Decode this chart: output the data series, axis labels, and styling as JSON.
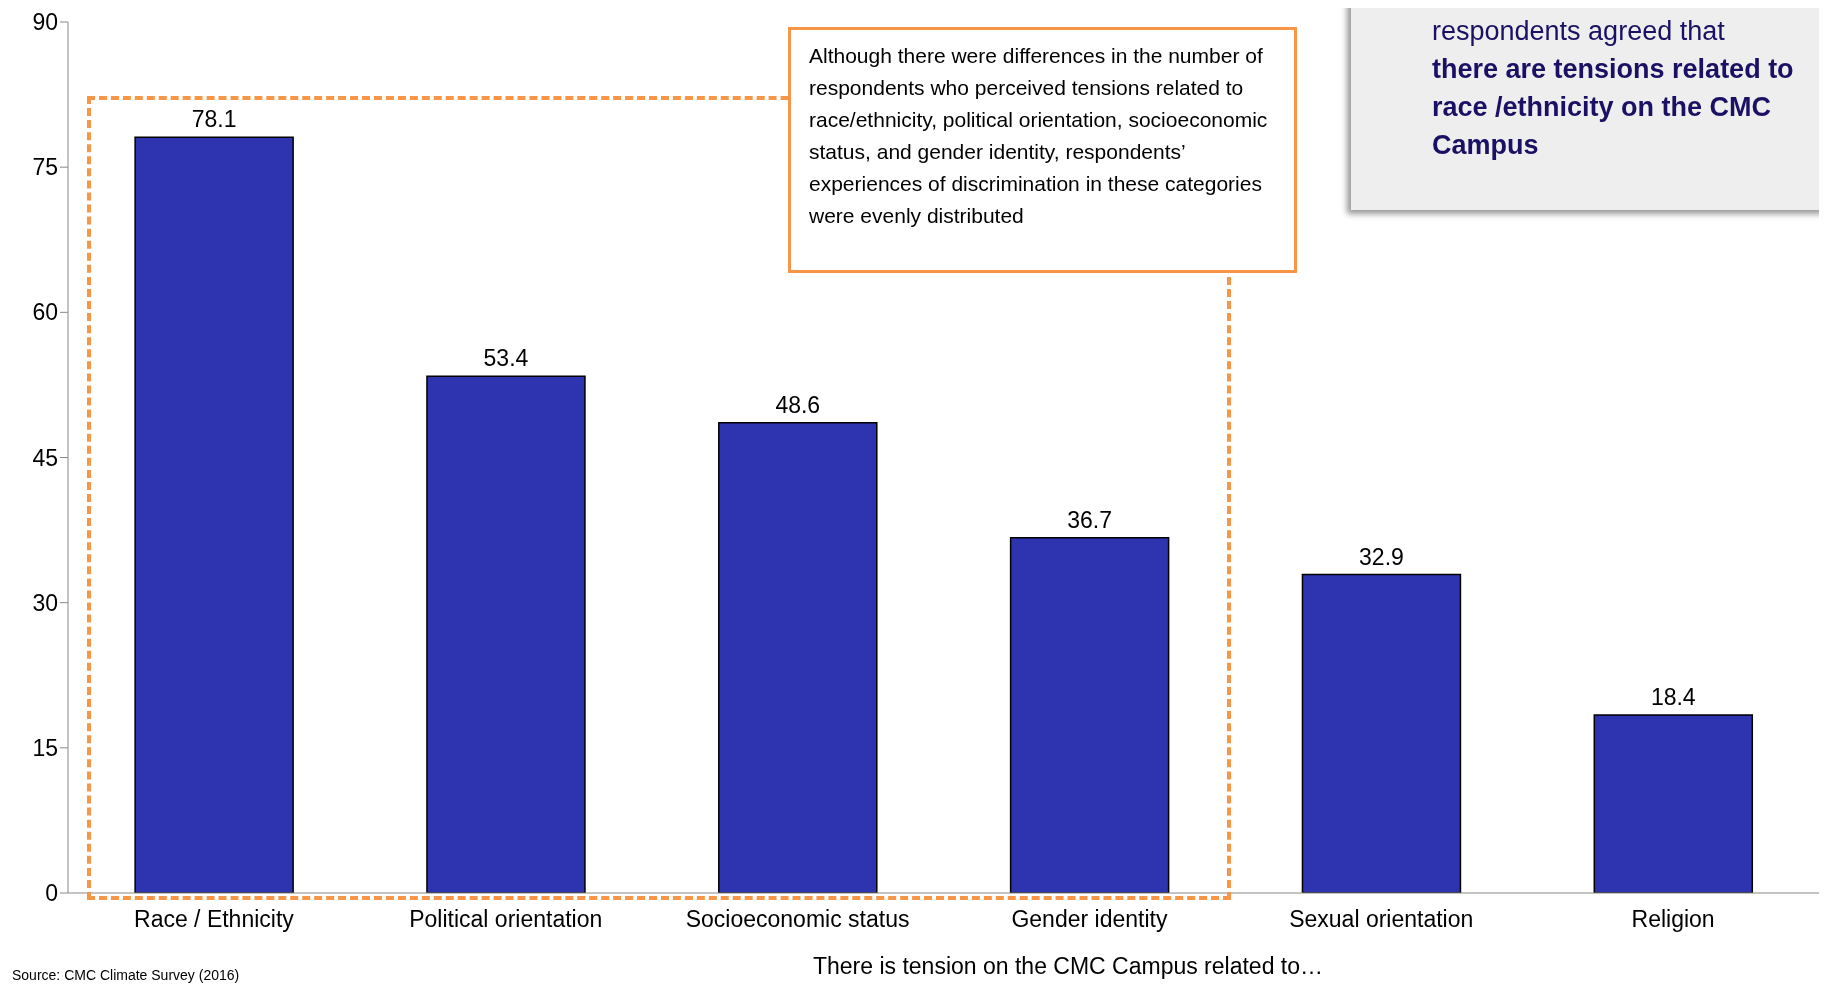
{
  "chart_data": {
    "type": "bar",
    "xlabel": "There is tension on the CMC Campus related to…",
    "categories": [
      "Race / Ethnicity",
      "Political orientation",
      "Socioeconomic status",
      "Gender identity",
      "Sexual orientation",
      "Religion"
    ],
    "values": [
      78.1,
      53.4,
      48.6,
      36.7,
      32.9,
      18.4
    ],
    "color": "#2e33b0",
    "ylim": [
      0,
      90
    ],
    "yticks": [
      0,
      15,
      30,
      45,
      60,
      75,
      90
    ],
    "grid": false,
    "data_labels": true,
    "annotations": [
      "Although there were differences in the number of respondents who perceived tensions related to race/ethnicity, political orientation, socioeconomic status, and gender identity, respondents’ experiences of discrimination in these categories were evenly distributed",
      "respondents agreed that",
      "there are tensions related to race /ethnicity on the CMC Campus",
      "Source: CMC Climate Survey (2016)"
    ]
  }
}
